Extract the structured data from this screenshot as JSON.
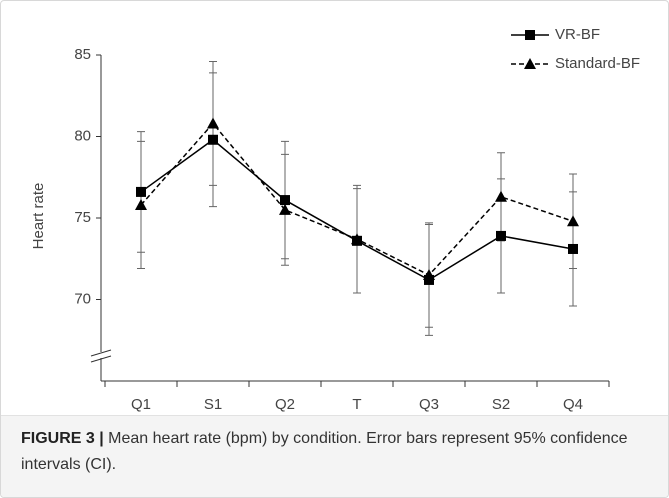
{
  "chart_data": {
    "type": "line",
    "ylabel": "Heart rate",
    "categories": [
      "Q1",
      "S1",
      "Q2",
      "T",
      "Q3",
      "S2",
      "Q4"
    ],
    "series": [
      {
        "name": "VR-BF",
        "color": "#000000",
        "line_style": "solid",
        "marker": "square",
        "values": [
          76.6,
          79.8,
          76.1,
          73.6,
          71.2,
          73.9,
          73.1
        ],
        "errors": [
          3.7,
          4.1,
          3.6,
          3.2,
          3.4,
          3.5,
          3.5
        ]
      },
      {
        "name": "Standard-BF",
        "color": "#000000",
        "line_style": "dashed",
        "marker": "triangle",
        "values": [
          75.8,
          80.8,
          75.5,
          73.7,
          71.5,
          76.3,
          74.8
        ],
        "errors": [
          3.9,
          3.8,
          3.4,
          3.3,
          3.2,
          2.7,
          2.9
        ]
      }
    ],
    "ylim": [
      65,
      85
    ],
    "yticks": [
      70,
      75,
      80,
      85
    ],
    "legend": "top-right",
    "caption_label": "FIGURE 3 |",
    "caption": "Mean heart rate (bpm) by condition. Error bars represent 95% confidence intervals (CI)."
  }
}
